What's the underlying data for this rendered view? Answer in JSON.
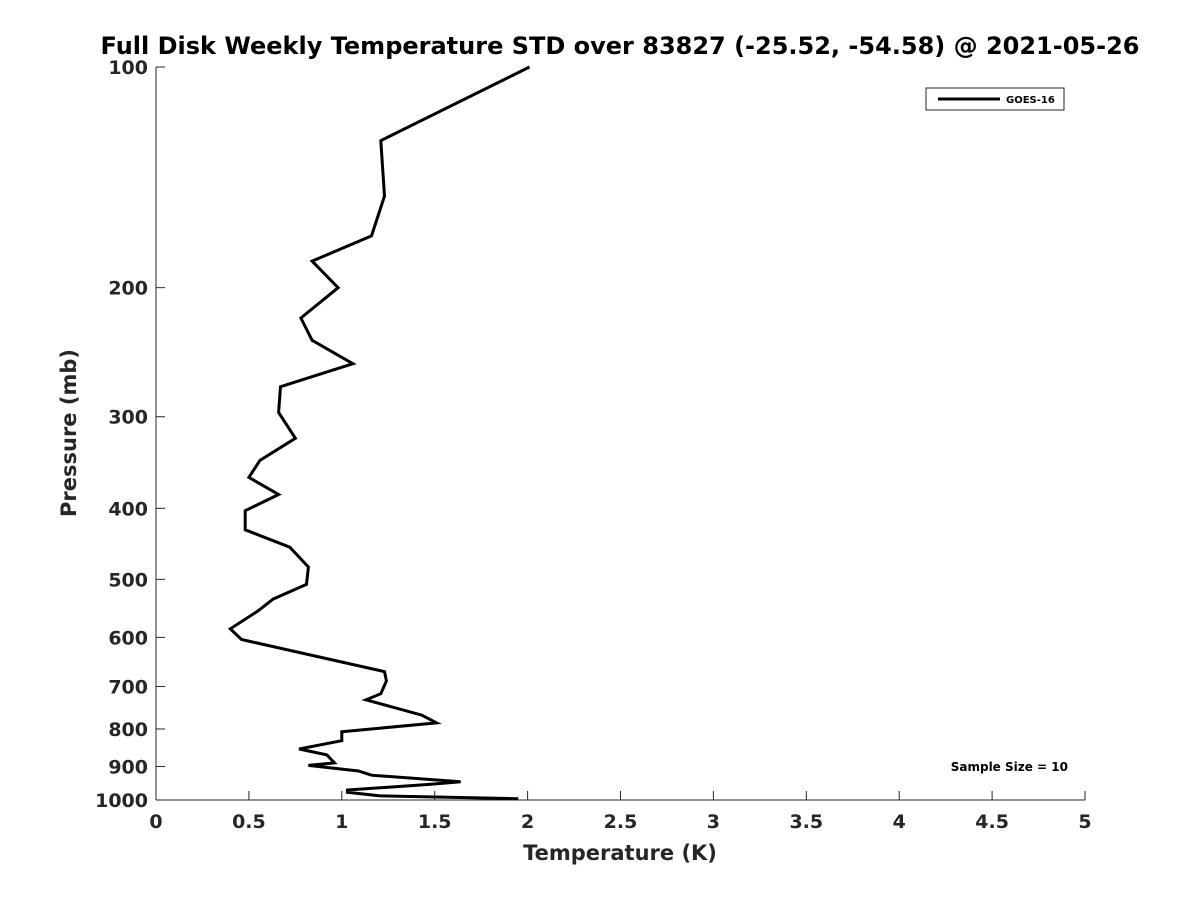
{
  "chart_data": {
    "type": "line",
    "title": "Full Disk Weekly Temperature STD over 83827 (-25.52, -54.58) @ 2021-05-26",
    "xlabel": "Temperature (K)",
    "ylabel": "Pressure (mb)",
    "xlim": [
      0,
      5
    ],
    "ylim": [
      100,
      1000
    ],
    "y_scale": "log",
    "y_reversed": true,
    "grid": false,
    "legend_position": "top-right",
    "x_ticks": [
      "0",
      "0.5",
      "1",
      "1.5",
      "2",
      "2.5",
      "3",
      "3.5",
      "4",
      "4.5",
      "5"
    ],
    "y_ticks": [
      "100",
      "200",
      "300",
      "400",
      "500",
      "600",
      "700",
      "800",
      "900",
      "1000"
    ],
    "series": [
      {
        "name": "GOES-16",
        "color": "#000000",
        "points": [
          [
            2.01,
            100
          ],
          [
            1.21,
            126
          ],
          [
            1.23,
            150
          ],
          [
            1.16,
            170
          ],
          [
            0.84,
            184
          ],
          [
            0.98,
            200
          ],
          [
            0.78,
            220
          ],
          [
            0.84,
            236
          ],
          [
            1.06,
            254
          ],
          [
            0.67,
            273
          ],
          [
            0.66,
            296
          ],
          [
            0.75,
            321
          ],
          [
            0.56,
            344
          ],
          [
            0.5,
            363
          ],
          [
            0.66,
            383
          ],
          [
            0.48,
            403
          ],
          [
            0.48,
            428
          ],
          [
            0.72,
            452
          ],
          [
            0.82,
            481
          ],
          [
            0.81,
            508
          ],
          [
            0.63,
            532
          ],
          [
            0.55,
            552
          ],
          [
            0.4,
            584
          ],
          [
            0.46,
            604
          ],
          [
            1.23,
            668
          ],
          [
            1.24,
            688
          ],
          [
            1.21,
            716
          ],
          [
            1.13,
            730
          ],
          [
            1.43,
            766
          ],
          [
            1.51,
            785
          ],
          [
            1.0,
            807
          ],
          [
            1.0,
            830
          ],
          [
            0.77,
            852
          ],
          [
            0.92,
            868
          ],
          [
            0.96,
            890
          ],
          [
            0.82,
            897
          ],
          [
            1.09,
            913
          ],
          [
            1.16,
            925
          ],
          [
            1.64,
            944
          ],
          [
            1.48,
            952
          ],
          [
            1.03,
            969
          ],
          [
            1.03,
            976
          ],
          [
            1.2,
            987
          ],
          [
            1.95,
            996
          ]
        ]
      }
    ],
    "annotations": [
      "Sample Size = 10"
    ]
  }
}
